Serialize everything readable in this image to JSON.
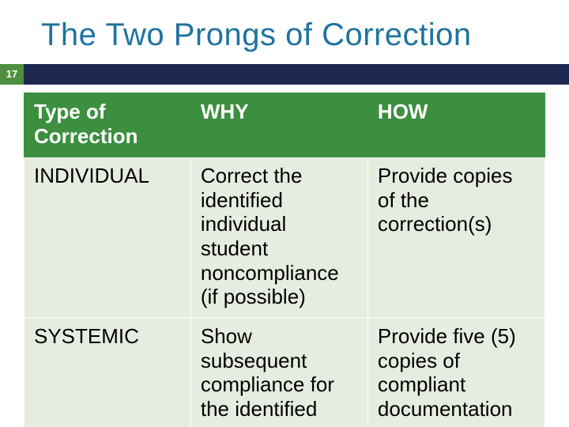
{
  "slide": {
    "title": "The Two Prongs of Correction",
    "page_number": "17",
    "colors": {
      "title_text": "#1f73a0",
      "badge_bar_bg": "#1d2850",
      "badge_bg": "#4d8f3f",
      "badge_text": "#ffffff",
      "table_header_bg": "#3b8f3f",
      "table_header_text": "#ffffff",
      "table_cell_bg": "#e6ede0",
      "table_cell_text": "#000000",
      "slide_bg": "#ffffff"
    },
    "fonts": {
      "title_size_pt": 30,
      "table_size_pt": 20,
      "badge_size_pt": 10
    },
    "table": {
      "columns": [
        "Type of Correction",
        "WHY",
        "HOW"
      ],
      "column_widths_pct": [
        32,
        34,
        34
      ],
      "rows": [
        {
          "type": "INDIVIDUAL",
          "why": "Correct the identified individual student noncompliance (if possible)",
          "how": "Provide copies of the correction(s)"
        },
        {
          "type": "SYSTEMIC",
          "why": "Show subsequent compliance for the identified",
          "how": "Provide five (5) copies of compliant documentation"
        }
      ]
    }
  }
}
